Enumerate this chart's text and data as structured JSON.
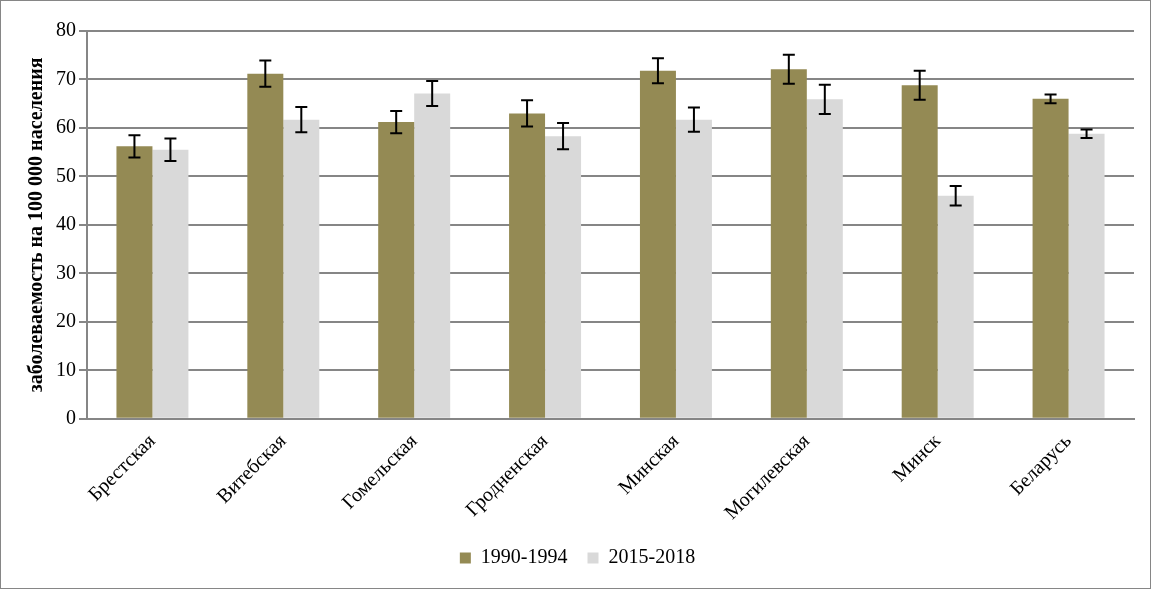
{
  "chart_data": {
    "type": "bar",
    "ylabel": "заболеваемость на 100 000 населения",
    "categories": [
      "Брестская",
      "Витебская",
      "Гомельская",
      "Гродненская",
      "Минская",
      "Могилевская",
      "Минск",
      "Беларусь"
    ],
    "series": [
      {
        "name": "1990-1994",
        "color": "#948a54",
        "values": [
          56.2,
          71.2,
          61.2,
          63.0,
          71.8,
          72.1,
          68.8,
          66.0
        ],
        "errors": [
          2.3,
          2.7,
          2.3,
          2.7,
          2.6,
          3.0,
          3.0,
          0.9
        ]
      },
      {
        "name": "2015-2018",
        "color": "#d9d9d9",
        "values": [
          55.5,
          61.7,
          67.1,
          58.3,
          61.7,
          65.9,
          46.0,
          58.8
        ],
        "errors": [
          2.3,
          2.6,
          2.6,
          2.7,
          2.5,
          3.0,
          2.0,
          0.9
        ]
      }
    ],
    "ylim": [
      0,
      80
    ],
    "yticks": [
      0,
      10,
      20,
      30,
      40,
      50,
      60,
      70,
      80
    ],
    "grid": "y",
    "legend": "bottom"
  }
}
